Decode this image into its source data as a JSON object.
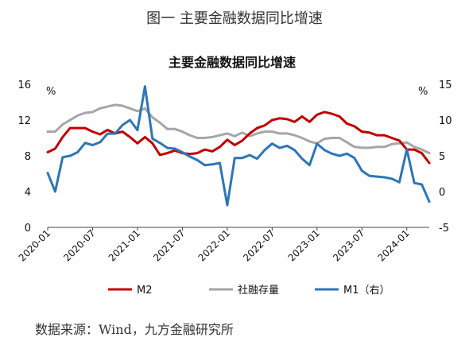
{
  "figure_caption": "图一  主要金融数据同比增速",
  "source_note": "数据来源：Wind，九方金融研究所",
  "chart_data": {
    "type": "line",
    "title": "主要金融数据同比增速",
    "left_unit": "%",
    "right_unit": "%",
    "x_tick_labels": [
      "2020-01",
      "2020-07",
      "2021-01",
      "2021-07",
      "2022-01",
      "2022-07",
      "2023-01",
      "2023-07",
      "2024-01"
    ],
    "x_tick_index": [
      0,
      6,
      12,
      18,
      24,
      30,
      36,
      42,
      48
    ],
    "left_axis": {
      "min": 0,
      "max": 16,
      "ticks": [
        0,
        4,
        8,
        12,
        16
      ]
    },
    "right_axis": {
      "min": -5,
      "max": 15,
      "ticks": [
        -5,
        0,
        5,
        10,
        15
      ]
    },
    "legend_position": "bottom",
    "grid": false,
    "series": [
      {
        "name": "M2",
        "axis": "left",
        "color": "#c00000",
        "values": [
          8.4,
          8.8,
          10.1,
          11.1,
          11.1,
          11.1,
          10.7,
          10.4,
          10.9,
          10.5,
          10.7,
          10.1,
          9.4,
          10.1,
          9.4,
          8.1,
          8.3,
          8.6,
          8.3,
          8.2,
          8.3,
          8.7,
          8.5,
          9.0,
          9.8,
          9.2,
          9.7,
          10.5,
          11.1,
          11.4,
          12.0,
          12.2,
          12.1,
          11.8,
          12.4,
          11.8,
          12.6,
          12.9,
          12.7,
          12.4,
          11.6,
          11.3,
          10.7,
          10.6,
          10.3,
          10.3,
          10.0,
          9.7,
          8.7,
          8.7,
          8.3,
          7.2
        ]
      },
      {
        "name": "社融存量",
        "axis": "left",
        "color": "#a6a6a6",
        "values": [
          10.7,
          10.7,
          11.5,
          12.0,
          12.5,
          12.8,
          12.9,
          13.3,
          13.5,
          13.7,
          13.6,
          13.3,
          13.0,
          13.3,
          12.3,
          11.7,
          11.0,
          11.0,
          10.7,
          10.3,
          10.0,
          10.0,
          10.1,
          10.3,
          10.5,
          10.2,
          10.6,
          10.2,
          10.5,
          10.7,
          10.7,
          10.5,
          10.5,
          10.3,
          10.0,
          9.6,
          9.4,
          9.9,
          10.0,
          10.0,
          9.5,
          9.0,
          8.9,
          8.9,
          9.0,
          9.0,
          9.3,
          9.4,
          9.5,
          9.0,
          8.7,
          8.3
        ]
      },
      {
        "name": "M1（右）",
        "axis": "right",
        "color": "#2e75b6",
        "values": [
          2.6,
          0.0,
          4.8,
          5.0,
          5.5,
          6.8,
          6.5,
          6.9,
          8.1,
          8.1,
          9.3,
          10.0,
          8.6,
          14.7,
          7.4,
          6.8,
          6.1,
          6.0,
          5.5,
          4.9,
          4.4,
          3.7,
          3.8,
          4.0,
          -1.9,
          4.7,
          4.7,
          5.1,
          4.6,
          5.8,
          6.7,
          6.1,
          6.4,
          5.8,
          4.6,
          3.7,
          6.7,
          5.8,
          5.3,
          5.0,
          5.3,
          4.7,
          2.9,
          2.2,
          2.1,
          2.0,
          1.8,
          1.3,
          5.9,
          1.2,
          1.0,
          -1.4
        ]
      }
    ]
  }
}
